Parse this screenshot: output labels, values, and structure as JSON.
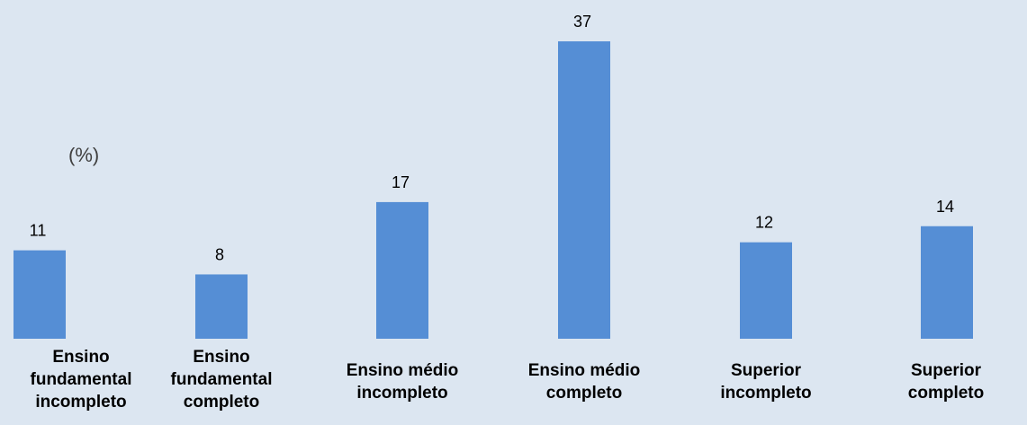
{
  "chart_data": {
    "type": "bar",
    "unit_label": "(%)",
    "categories": [
      [
        "Ensino",
        "fundamental",
        "incompleto"
      ],
      [
        "Ensino",
        "fundamental",
        "completo"
      ],
      [
        "Ensino médio",
        "incompleto"
      ],
      [
        "Ensino médio",
        "completo"
      ],
      [
        "Superior",
        "incompleto"
      ],
      [
        "Superior",
        "completo"
      ]
    ],
    "values": [
      11,
      8,
      17,
      37,
      12,
      14
    ],
    "ylim": [
      0,
      37
    ],
    "bar_color": "#558ed5",
    "background_color": "#dce6f1",
    "grid": false,
    "legend": "none"
  }
}
